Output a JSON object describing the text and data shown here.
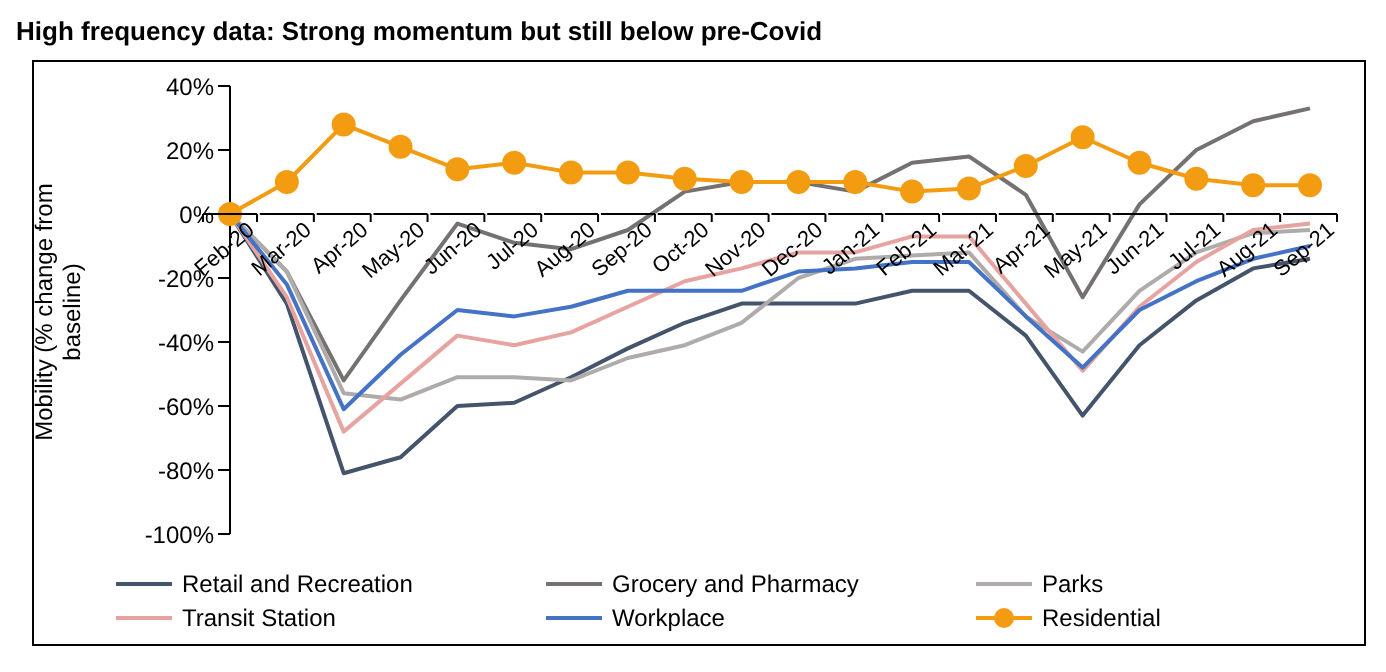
{
  "chart_data": {
    "type": "line",
    "title": "High frequency data: Strong momentum but still below pre-Covid",
    "ylabel": "Mobility (% change from baseline)",
    "categories": [
      "Feb-20",
      "Mar-20",
      "Apr-20",
      "May-20",
      "Jun-20",
      "Jul-20",
      "Aug-20",
      "Sep-20",
      "Oct-20",
      "Nov-20",
      "Dec-20",
      "Jan-21",
      "Feb-21",
      "Mar-21",
      "Apr-21",
      "May-21",
      "Jun-21",
      "Jul-21",
      "Aug-21",
      "Sep-21"
    ],
    "series": [
      {
        "name": "Retail and Recreation",
        "color": "#44546a",
        "marker": "none",
        "values": [
          0,
          -28,
          -81,
          -76,
          -60,
          -59,
          -51,
          -42,
          -34,
          -28,
          -28,
          -28,
          -24,
          -24,
          -38,
          -63,
          -41,
          -27,
          -17,
          -14
        ]
      },
      {
        "name": "Grocery and Pharmacy",
        "color": "#767171",
        "marker": "none",
        "values": [
          0,
          -18,
          -52,
          -27,
          -3,
          -9,
          -11,
          -5,
          7,
          10,
          10,
          7,
          16,
          18,
          6,
          -26,
          3,
          20,
          29,
          33
        ]
      },
      {
        "name": "Parks",
        "color": "#afabab",
        "marker": "none",
        "values": [
          0,
          -18,
          -56,
          -58,
          -51,
          -51,
          -52,
          -45,
          -41,
          -34,
          -20,
          -14,
          -13,
          -12,
          -32,
          -43,
          -24,
          -12,
          -6,
          -5
        ]
      },
      {
        "name": "Transit Station",
        "color": "#e6a3a0",
        "marker": "none",
        "values": [
          0,
          -26,
          -68,
          -53,
          -38,
          -41,
          -37,
          -29,
          -21,
          -17,
          -12,
          -12,
          -7,
          -7,
          -28,
          -49,
          -29,
          -15,
          -5,
          -3
        ]
      },
      {
        "name": "Workplace",
        "color": "#4472c4",
        "marker": "none",
        "values": [
          0,
          -22,
          -61,
          -44,
          -30,
          -32,
          -29,
          -24,
          -24,
          -24,
          -18,
          -17,
          -15,
          -15,
          -32,
          -48,
          -30,
          -21,
          -14,
          -10
        ]
      },
      {
        "name": "Residential",
        "color": "#f39c12",
        "marker": "circle",
        "values": [
          0,
          10,
          28,
          21,
          14,
          16,
          13,
          13,
          11,
          10,
          10,
          10,
          7,
          8,
          15,
          24,
          16,
          11,
          9,
          9
        ]
      }
    ],
    "ylim": [
      -100,
      40
    ],
    "yticks": [
      {
        "value": -100,
        "label": "-100%"
      },
      {
        "value": -80,
        "label": "-80%"
      },
      {
        "value": -60,
        "label": "-60%"
      },
      {
        "value": -40,
        "label": "-40%"
      },
      {
        "value": -20,
        "label": "-20%"
      },
      {
        "value": 0,
        "label": "0%"
      },
      {
        "value": 20,
        "label": "20%"
      },
      {
        "value": 40,
        "label": "40%"
      }
    ],
    "legend": "bottom"
  }
}
